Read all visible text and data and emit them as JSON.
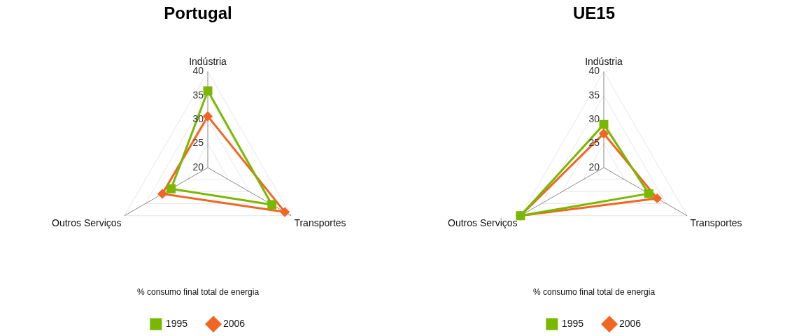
{
  "chart_data": [
    {
      "type": "radar",
      "title": "Portugal",
      "categories": [
        "Indústria",
        "Transportes",
        "Outros Serviços"
      ],
      "ylim": [
        20,
        40
      ],
      "yticks": [
        20,
        25,
        30,
        35,
        40
      ],
      "grid": true,
      "legend": "bottom",
      "legend_title": "% consumo final total de energia",
      "series": [
        {
          "name": "1995",
          "color": "#7ab800",
          "marker": "square",
          "values": [
            36,
            35.4,
            28.8
          ]
        },
        {
          "name": "2006",
          "color": "#f26522",
          "marker": "diamond",
          "values": [
            30.7,
            38.5,
            30.9
          ]
        }
      ]
    },
    {
      "type": "radar",
      "title": "UE15",
      "categories": [
        "Indústria",
        "Transportes",
        "Outros Serviços"
      ],
      "ylim": [
        20,
        40
      ],
      "yticks": [
        20,
        25,
        30,
        35,
        40
      ],
      "grid": true,
      "legend": "bottom",
      "legend_title": "% consumo final total de energia",
      "series": [
        {
          "name": "1995",
          "color": "#7ab800",
          "marker": "square",
          "values": [
            29,
            30.8,
            40
          ]
        },
        {
          "name": "2006",
          "color": "#f26522",
          "marker": "diamond",
          "values": [
            27.1,
            32.8,
            40
          ]
        }
      ]
    }
  ]
}
